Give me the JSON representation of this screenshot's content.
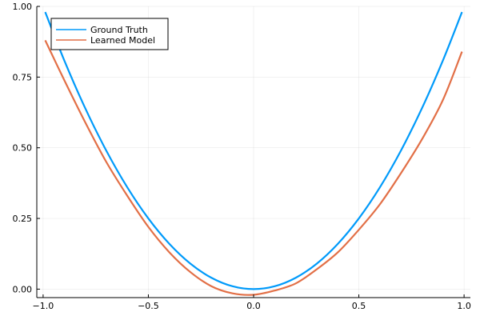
{
  "chart_data": {
    "type": "line",
    "title": "",
    "xlabel": "",
    "ylabel": "",
    "xlim": [
      -1.03,
      1.03
    ],
    "ylim": [
      -0.03,
      1.0
    ],
    "grid": true,
    "legend_position": "top-left",
    "x_ticks": [
      -1.0,
      -0.5,
      0.0,
      0.5,
      1.0
    ],
    "x_tick_labels": [
      "−1.0",
      "−0.5",
      "0.0",
      "0.5",
      "1.0"
    ],
    "y_ticks": [
      0.0,
      0.25,
      0.5,
      0.75,
      1.0
    ],
    "y_tick_labels": [
      "0.00",
      "0.25",
      "0.50",
      "0.75",
      "1.00"
    ],
    "series": [
      {
        "name": "Ground Truth",
        "color": "#009AFA",
        "x": [
          -0.99,
          -0.9,
          -0.8,
          -0.7,
          -0.6,
          -0.5,
          -0.4,
          -0.3,
          -0.2,
          -0.1,
          0.0,
          0.1,
          0.2,
          0.3,
          0.4,
          0.5,
          0.6,
          0.7,
          0.8,
          0.9,
          0.99
        ],
        "y": [
          0.98,
          0.81,
          0.64,
          0.49,
          0.36,
          0.25,
          0.16,
          0.09,
          0.04,
          0.01,
          0.0,
          0.01,
          0.04,
          0.09,
          0.16,
          0.25,
          0.36,
          0.49,
          0.64,
          0.81,
          0.98
        ]
      },
      {
        "name": "Learned Model",
        "color": "#E26F46",
        "x": [
          -0.99,
          -0.9,
          -0.8,
          -0.7,
          -0.6,
          -0.5,
          -0.4,
          -0.3,
          -0.2,
          -0.1,
          0.0,
          0.1,
          0.2,
          0.3,
          0.4,
          0.5,
          0.6,
          0.7,
          0.8,
          0.9,
          0.99
        ],
        "y": [
          0.88,
          0.74,
          0.59,
          0.45,
          0.33,
          0.22,
          0.13,
          0.06,
          0.01,
          -0.015,
          -0.02,
          -0.005,
          0.02,
          0.07,
          0.13,
          0.21,
          0.3,
          0.41,
          0.53,
          0.67,
          0.84
        ]
      }
    ]
  }
}
